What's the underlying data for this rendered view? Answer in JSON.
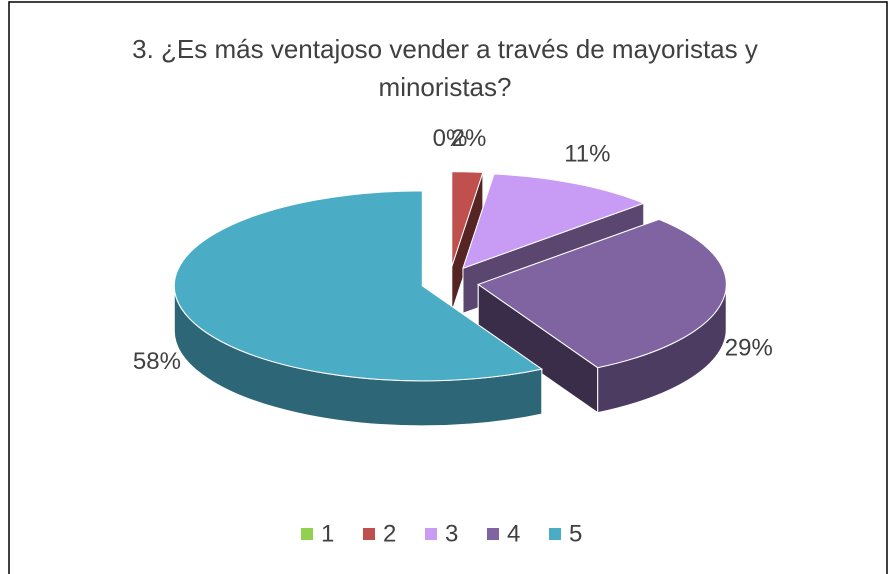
{
  "chart_data": {
    "type": "pie",
    "title": "3. ¿Es más ventajoso vender a través de mayoristas y minoristas?",
    "categories": [
      "1",
      "2",
      "3",
      "4",
      "5"
    ],
    "values": [
      0,
      2,
      11,
      29,
      58
    ],
    "value_labels": [
      "0%",
      "2%",
      "11%",
      "29%",
      "58%"
    ],
    "colors": [
      "#92d050",
      "#c0504d",
      "#c89bf5",
      "#8064a2",
      "#4bacc6"
    ],
    "legend": "bottom"
  }
}
